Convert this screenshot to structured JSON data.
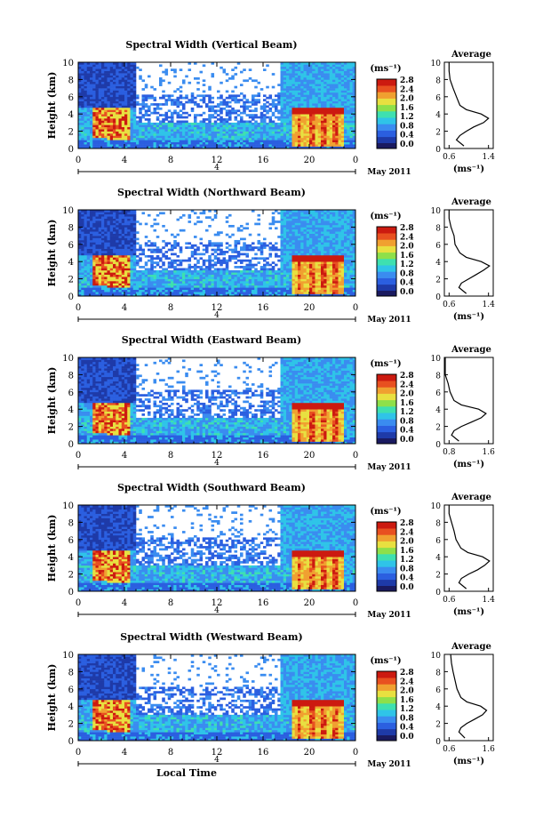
{
  "chart_data": [
    {
      "type": "heatmap",
      "title": "Spectral Width (Vertical Beam)",
      "ylabel": "Height (km)",
      "ylim": [
        0,
        10
      ],
      "y_ticks": [
        "0",
        "2",
        "4",
        "6",
        "8",
        "10"
      ],
      "xlim": [
        0,
        24
      ],
      "x_ticks": [
        "0",
        "4",
        "8",
        "12",
        "16",
        "20",
        "0"
      ],
      "date_marker": "4",
      "date_label": "May 2011",
      "colorbar": {
        "unit": "(ms⁻¹)",
        "ticks": [
          "0.0",
          "0.4",
          "0.8",
          "1.2",
          "1.6",
          "2.0",
          "2.4",
          "2.8"
        ]
      },
      "profile": {
        "title": "Average",
        "xlabel": "(ms⁻¹)",
        "x_ticks": [
          "0.6",
          "1.4"
        ],
        "y_ticks": [
          "0",
          "2",
          "4",
          "6",
          "8",
          "10"
        ],
        "points": [
          [
            0.9,
            0.3
          ],
          [
            0.75,
            1.0
          ],
          [
            0.82,
            1.5
          ],
          [
            0.95,
            2.0
          ],
          [
            1.1,
            2.5
          ],
          [
            1.3,
            3.0
          ],
          [
            1.4,
            3.5
          ],
          [
            1.25,
            4.0
          ],
          [
            0.95,
            4.5
          ],
          [
            0.82,
            5.0
          ],
          [
            0.75,
            6.0
          ],
          [
            0.68,
            7.0
          ],
          [
            0.62,
            8.0
          ],
          [
            0.6,
            9.0
          ],
          [
            0.6,
            10.0
          ]
        ]
      }
    },
    {
      "type": "heatmap",
      "title": "Spectral Width (Northward Beam)",
      "ylabel": "Height (km)",
      "ylim": [
        0,
        10
      ],
      "y_ticks": [
        "0",
        "2",
        "4",
        "6",
        "8",
        "10"
      ],
      "xlim": [
        0,
        24
      ],
      "x_ticks": [
        "0",
        "4",
        "8",
        "12",
        "16",
        "20",
        "0"
      ],
      "date_marker": "4",
      "date_label": "May 2011",
      "colorbar": {
        "unit": "(ms⁻¹)",
        "ticks": [
          "0.0",
          "0.4",
          "0.8",
          "1.2",
          "1.6",
          "2.0",
          "2.4",
          "2.8"
        ]
      },
      "profile": {
        "title": "Average",
        "xlabel": "(ms⁻¹)",
        "x_ticks": [
          "0.6",
          "1.4"
        ],
        "y_ticks": [
          "0",
          "2",
          "4",
          "6",
          "8",
          "10"
        ],
        "points": [
          [
            0.95,
            0.3
          ],
          [
            0.8,
            1.0
          ],
          [
            0.85,
            1.5
          ],
          [
            1.0,
            2.0
          ],
          [
            1.15,
            2.5
          ],
          [
            1.3,
            3.0
          ],
          [
            1.42,
            3.5
          ],
          [
            1.25,
            4.0
          ],
          [
            0.95,
            4.5
          ],
          [
            0.82,
            5.0
          ],
          [
            0.72,
            6.0
          ],
          [
            0.7,
            7.0
          ],
          [
            0.64,
            8.0
          ],
          [
            0.6,
            9.0
          ],
          [
            0.6,
            10.0
          ]
        ]
      }
    },
    {
      "type": "heatmap",
      "title": "Spectral Width (Eastward Beam)",
      "ylabel": "Height (km)",
      "ylim": [
        0,
        10
      ],
      "y_ticks": [
        "0",
        "2",
        "4",
        "6",
        "8",
        "10"
      ],
      "xlim": [
        0,
        24
      ],
      "x_ticks": [
        "0",
        "4",
        "8",
        "12",
        "16",
        "20",
        "0"
      ],
      "date_marker": "4",
      "date_label": "May 2011",
      "colorbar": {
        "unit": "(ms⁻¹)",
        "ticks": [
          "0.0",
          "0.4",
          "0.8",
          "1.2",
          "1.6",
          "2.0",
          "2.4",
          "2.8"
        ]
      },
      "profile": {
        "title": "Average",
        "xlabel": "(ms⁻¹)",
        "x_ticks": [
          "0.8",
          "1.6"
        ],
        "y_ticks": [
          "0",
          "2",
          "4",
          "6",
          "8",
          "10"
        ],
        "points": [
          [
            1.0,
            0.3
          ],
          [
            0.85,
            1.0
          ],
          [
            0.9,
            1.5
          ],
          [
            1.05,
            2.0
          ],
          [
            1.25,
            2.5
          ],
          [
            1.45,
            3.0
          ],
          [
            1.55,
            3.5
          ],
          [
            1.4,
            4.0
          ],
          [
            1.05,
            4.5
          ],
          [
            0.9,
            5.0
          ],
          [
            0.82,
            6.0
          ],
          [
            0.78,
            7.0
          ],
          [
            0.72,
            8.0
          ],
          [
            0.68,
            9.0
          ],
          [
            0.66,
            10.0
          ]
        ]
      }
    },
    {
      "type": "heatmap",
      "title": "Spectral Width (Southward Beam)",
      "ylabel": "Height (km)",
      "ylim": [
        0,
        10
      ],
      "y_ticks": [
        "0",
        "2",
        "4",
        "6",
        "8",
        "10"
      ],
      "xlim": [
        0,
        24
      ],
      "x_ticks": [
        "0",
        "4",
        "8",
        "12",
        "16",
        "20",
        "0"
      ],
      "date_marker": "4",
      "date_label": "May 2011",
      "colorbar": {
        "unit": "(ms⁻¹)",
        "ticks": [
          "0.0",
          "0.4",
          "0.8",
          "1.2",
          "1.6",
          "2.0",
          "2.4",
          "2.8"
        ]
      },
      "profile": {
        "title": "Average",
        "xlabel": "(ms⁻¹)",
        "x_ticks": [
          "0.6",
          "1.4"
        ],
        "y_ticks": [
          "0",
          "2",
          "4",
          "6",
          "8",
          "10"
        ],
        "points": [
          [
            0.95,
            0.3
          ],
          [
            0.8,
            1.0
          ],
          [
            0.85,
            1.5
          ],
          [
            1.0,
            2.0
          ],
          [
            1.18,
            2.5
          ],
          [
            1.32,
            3.0
          ],
          [
            1.42,
            3.5
          ],
          [
            1.28,
            4.0
          ],
          [
            0.98,
            4.5
          ],
          [
            0.84,
            5.0
          ],
          [
            0.74,
            6.0
          ],
          [
            0.7,
            7.0
          ],
          [
            0.65,
            8.0
          ],
          [
            0.6,
            9.0
          ],
          [
            0.6,
            10.0
          ]
        ]
      }
    },
    {
      "type": "heatmap",
      "title": "Spectral Width (Westward Beam)",
      "ylabel": "Height (km)",
      "ylim": [
        0,
        10
      ],
      "y_ticks": [
        "0",
        "2",
        "4",
        "6",
        "8",
        "10"
      ],
      "xlim": [
        0,
        24
      ],
      "x_ticks": [
        "0",
        "4",
        "8",
        "12",
        "16",
        "20",
        "0"
      ],
      "date_marker": "4",
      "date_label": "May 2011",
      "xlabel": "Local Time",
      "colorbar": {
        "unit": "(ms⁻¹)",
        "ticks": [
          "0.0",
          "0.4",
          "0.8",
          "1.2",
          "1.6",
          "2.0",
          "2.4",
          "2.8"
        ]
      },
      "profile": {
        "title": "Average",
        "xlabel": "(ms⁻¹)",
        "x_ticks": [
          "0.6",
          "1.6"
        ],
        "y_ticks": [
          "0",
          "2",
          "4",
          "6",
          "8",
          "10"
        ],
        "points": [
          [
            1.0,
            0.3
          ],
          [
            0.85,
            1.0
          ],
          [
            0.9,
            1.5
          ],
          [
            1.05,
            2.0
          ],
          [
            1.25,
            2.5
          ],
          [
            1.45,
            3.0
          ],
          [
            1.55,
            3.5
          ],
          [
            1.4,
            4.0
          ],
          [
            1.05,
            4.5
          ],
          [
            0.9,
            5.0
          ],
          [
            0.8,
            6.0
          ],
          [
            0.75,
            7.0
          ],
          [
            0.7,
            8.0
          ],
          [
            0.66,
            9.0
          ],
          [
            0.64,
            10.0
          ]
        ]
      }
    }
  ],
  "colors": [
    "#1e3aa8",
    "#2b5fe0",
    "#3a8cf0",
    "#2fc4e8",
    "#3ee0b0",
    "#8ee04a",
    "#e8e040",
    "#f0a030",
    "#e85020",
    "#cc1a10"
  ]
}
